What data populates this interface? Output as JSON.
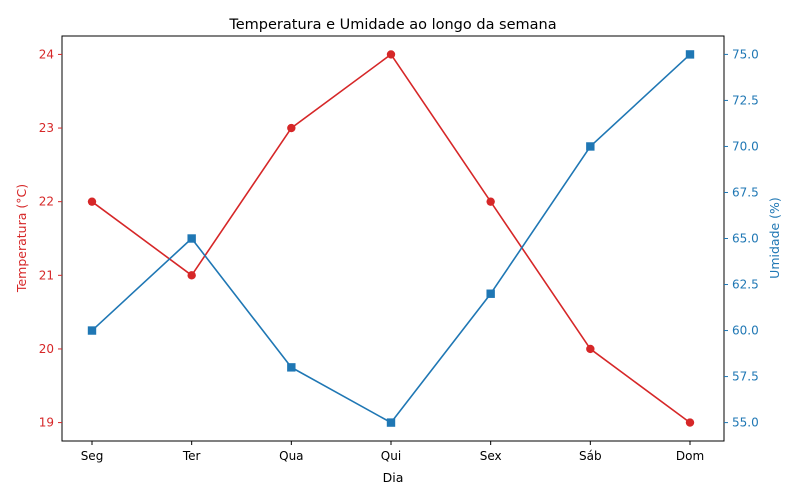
{
  "chart_data": {
    "type": "line",
    "title": "Temperatura e Umidade ao longo da semana",
    "xlabel": "Dia",
    "categories": [
      "Seg",
      "Ter",
      "Qua",
      "Qui",
      "Sex",
      "Sáb",
      "Dom"
    ],
    "y_left": {
      "label": "Temperatura (°C)",
      "ticks": [
        "19",
        "20",
        "21",
        "22",
        "23",
        "24"
      ],
      "lim": [
        18.75,
        24.25
      ],
      "color": "#d62728"
    },
    "y_right": {
      "label": "Umidade (%)",
      "ticks": [
        "55.0",
        "57.5",
        "60.0",
        "62.5",
        "65.0",
        "67.5",
        "70.0",
        "72.5",
        "75.0"
      ],
      "lim": [
        54.0,
        76.0
      ],
      "color": "#1f77b4"
    },
    "series": [
      {
        "axis": "left",
        "marker": "circle",
        "color": "#d62728",
        "values": [
          22,
          21,
          23,
          24,
          22,
          20,
          19
        ]
      },
      {
        "axis": "right",
        "marker": "square",
        "color": "#1f77b4",
        "values": [
          60,
          65,
          58,
          55,
          62,
          70,
          75
        ]
      }
    ],
    "grid": false,
    "legend": "none"
  }
}
